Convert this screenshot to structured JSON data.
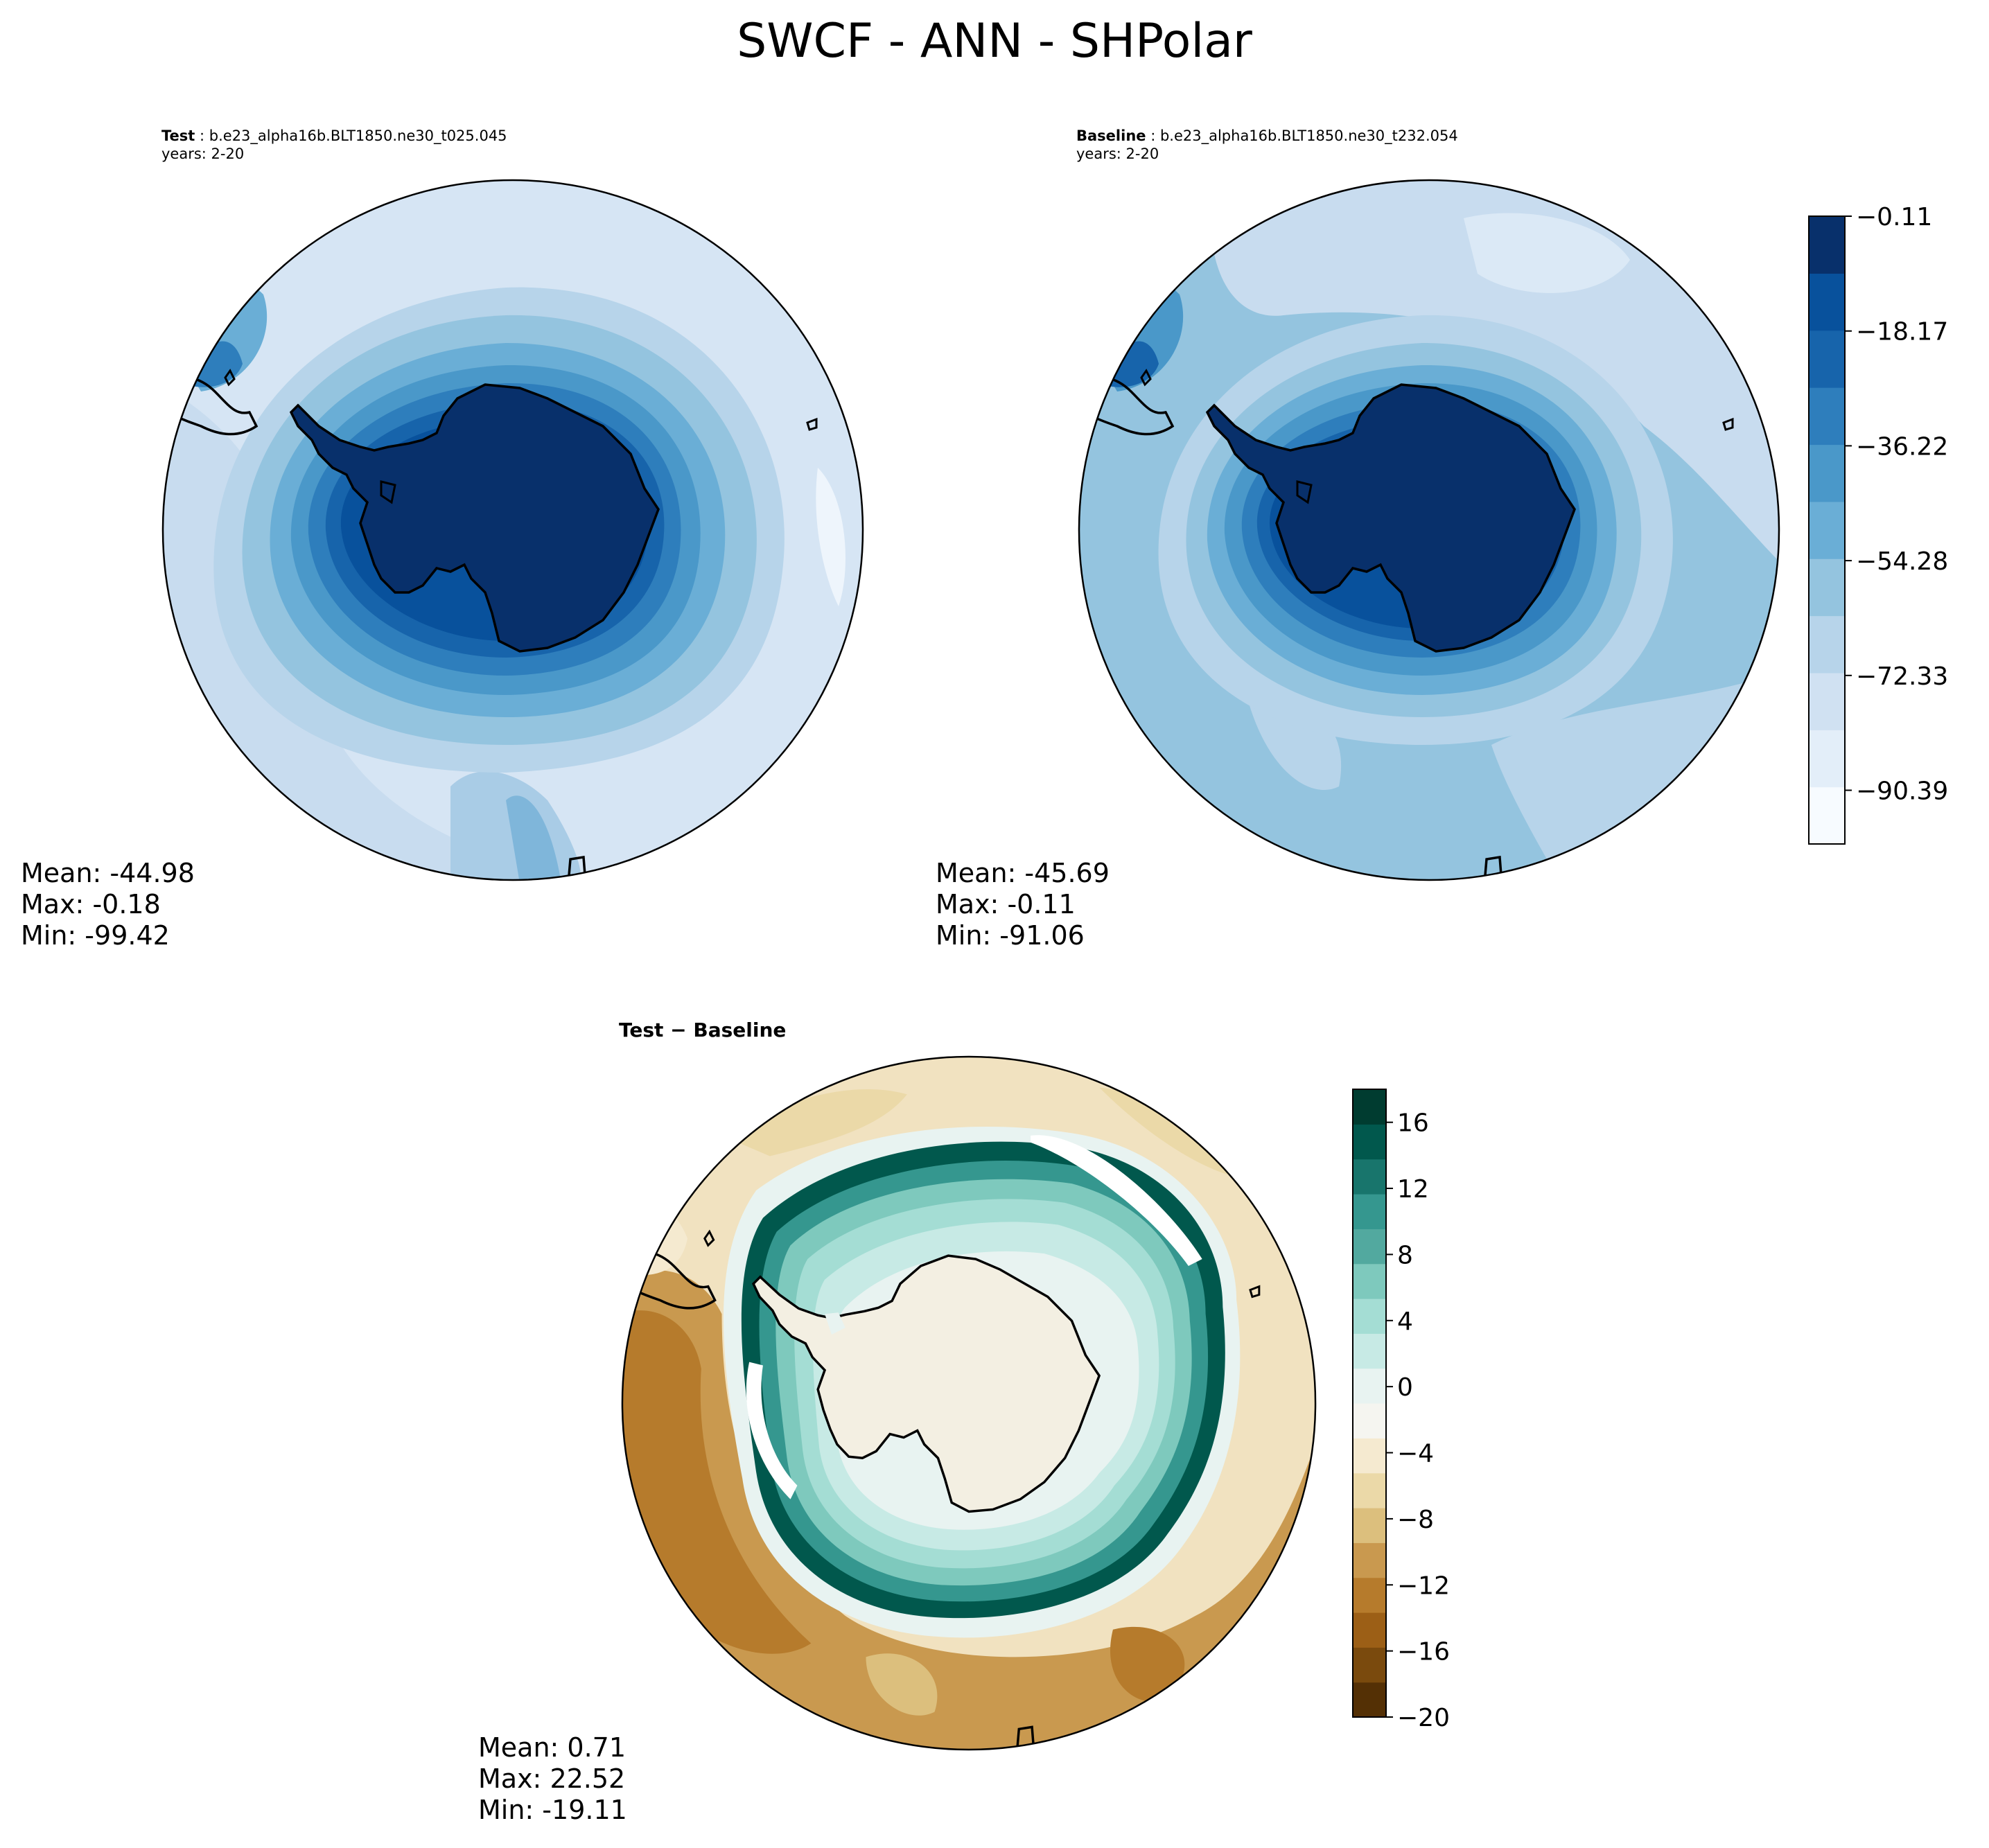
{
  "title": "SWCF - ANN - SHPolar",
  "panels": {
    "test": {
      "label": "Test",
      "case": "b.e23_alpha16b.BLT1850.ne30_t025.045",
      "years": "years: 2-20",
      "stats": {
        "mean": "Mean: -44.98",
        "max": "Max: -0.18",
        "min": "Min: -99.42"
      }
    },
    "baseline": {
      "label": "Baseline",
      "case": "b.e23_alpha16b.BLT1850.ne30_t232.054",
      "years": "years: 2-20",
      "stats": {
        "mean": "Mean: -45.69",
        "max": "Max: -0.11",
        "min": "Min: -91.06"
      }
    },
    "diff": {
      "title": "Test − Baseline",
      "stats": {
        "mean": "Mean:  0.71",
        "max": "Max: 22.52",
        "min": "Min: -19.11"
      }
    }
  },
  "colorbars": {
    "blues": {
      "ticks": [
        "−0.11",
        "−18.17",
        "−36.22",
        "−54.28",
        "−72.33",
        "−90.39"
      ],
      "colors": [
        "#f7fbff",
        "#e3eef9",
        "#d0e1f2",
        "#b7d4ea",
        "#94c4df",
        "#6aaed6",
        "#4a98c9",
        "#2e7ebc",
        "#1764ab",
        "#08519c",
        "#08306b"
      ]
    },
    "diverging": {
      "ticks": [
        "16",
        "12",
        "8",
        "4",
        "0",
        "−4",
        "−8",
        "−12",
        "−16",
        "−20"
      ],
      "colors": [
        "#543005",
        "#7a4a0d",
        "#9c5f16",
        "#b67b2c",
        "#c9994f",
        "#dcbf7d",
        "#ebd9a8",
        "#f5ead0",
        "#f5f5f0",
        "#e8f3f1",
        "#c7eae5",
        "#a4ddd4",
        "#7ec9bd",
        "#52a99f",
        "#35978f",
        "#18756c",
        "#01584d",
        "#003c30"
      ]
    }
  },
  "chart_data": [
    {
      "type": "heatmap",
      "title": "Test: b.e23_alpha16b.BLT1850.ne30_t025.045",
      "projection": "south-polar-stereographic",
      "variable": "SWCF",
      "season": "ANN",
      "years": "2-20",
      "colorscale": "Blues_r",
      "range": [
        -99.42,
        -0.18
      ],
      "mean": -44.98,
      "max": -0.18,
      "min": -99.42
    },
    {
      "type": "heatmap",
      "title": "Baseline: b.e23_alpha16b.BLT1850.ne30_t232.054",
      "projection": "south-polar-stereographic",
      "variable": "SWCF",
      "season": "ANN",
      "years": "2-20",
      "colorscale": "Blues_r",
      "colorbar_ticks": [
        -0.11,
        -18.17,
        -36.22,
        -54.28,
        -72.33,
        -90.39
      ],
      "mean": -45.69,
      "max": -0.11,
      "min": -91.06
    },
    {
      "type": "heatmap",
      "title": "Test − Baseline",
      "projection": "south-polar-stereographic",
      "colorscale": "BrBG",
      "colorbar_ticks": [
        16,
        12,
        8,
        4,
        0,
        -4,
        -8,
        -12,
        -16,
        -20
      ],
      "range": [
        -20,
        18
      ],
      "mean": 0.71,
      "max": 22.52,
      "min": -19.11
    }
  ]
}
